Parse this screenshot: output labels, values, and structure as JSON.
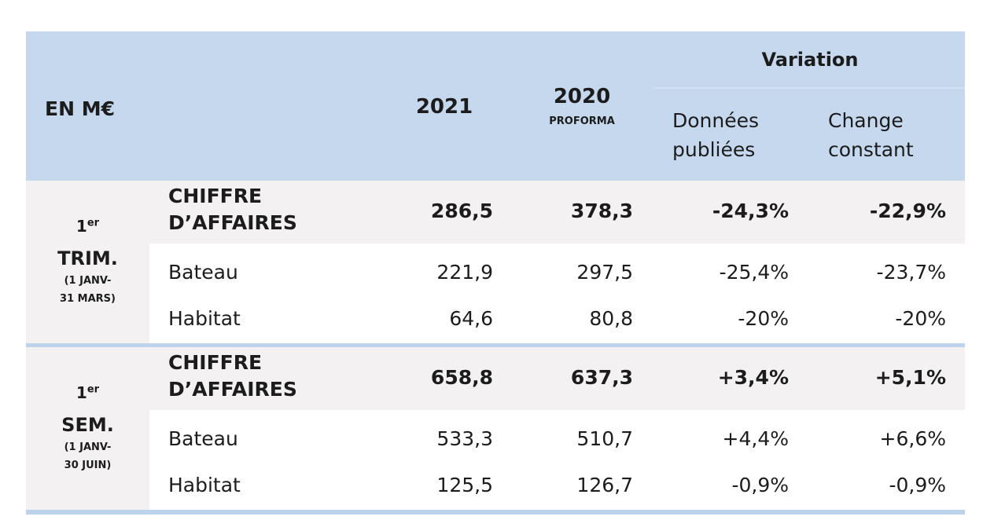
{
  "header": {
    "unit": "EN M€",
    "col_2021": "2021",
    "col_2020": "2020",
    "col_2020_note": "PROFORMA",
    "variation": "Variation",
    "published": [
      "Données",
      "publiées"
    ],
    "constant": [
      "Change",
      "constant"
    ]
  },
  "sections": [
    {
      "ordinal": "1",
      "ordinal_sup": "er",
      "period": "TRIM.",
      "range": [
        "(1 JANV-",
        "31 MARS)"
      ],
      "rows": [
        [
          "CHIFFRE D’AFFAIRES",
          "286,5",
          "378,3",
          "-24,3%",
          "-22,9%"
        ],
        [
          "Bateau",
          "221,9",
          "297,5",
          "-25,4%",
          "-23,7%"
        ],
        [
          "Habitat",
          "64,6",
          "80,8",
          "-20%",
          "-20%"
        ]
      ]
    },
    {
      "ordinal": "1",
      "ordinal_sup": "er",
      "period": "SEM.",
      "range": [
        "(1 JANV-",
        "30 JUIN)"
      ],
      "rows": [
        [
          "CHIFFRE D’AFFAIRES",
          "658,8",
          "637,3",
          "+3,4%",
          "+5,1%"
        ],
        [
          "Bateau",
          "533,3",
          "510,7",
          "+4,4%",
          "+6,6%"
        ],
        [
          "Habitat",
          "125,5",
          "126,7",
          "-0,9%",
          "-0,9%"
        ]
      ]
    }
  ]
}
